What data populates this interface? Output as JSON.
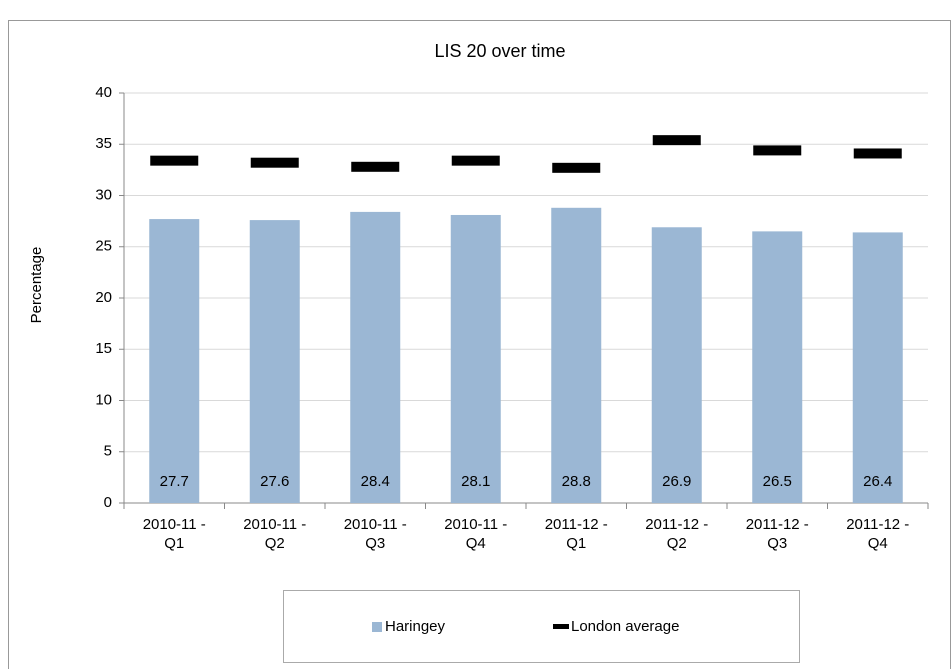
{
  "chart_data": {
    "type": "bar",
    "title": "LIS 20 over time",
    "y_label": "Percentage",
    "categories": [
      "2010-11 - Q1",
      "2010-11 - Q2",
      "2010-11 - Q3",
      "2010-11 - Q4",
      "2011-12 - Q1",
      "2011-12 - Q2",
      "2011-12 - Q3",
      "2011-12 - Q4"
    ],
    "series": [
      {
        "name": "Haringey",
        "color": "#9bb7d4",
        "values": [
          27.7,
          27.6,
          28.4,
          28.1,
          28.8,
          26.9,
          26.5,
          26.4
        ]
      },
      {
        "name": "London average",
        "color": "#000000",
        "values": [
          33.4,
          33.2,
          32.8,
          33.4,
          32.7,
          35.4,
          34.4,
          34.1
        ]
      }
    ],
    "ylim": [
      0,
      40
    ],
    "yticks": [
      0,
      5,
      10,
      15,
      20,
      25,
      30,
      35,
      40
    ],
    "grid": true,
    "legend": "bottom"
  }
}
